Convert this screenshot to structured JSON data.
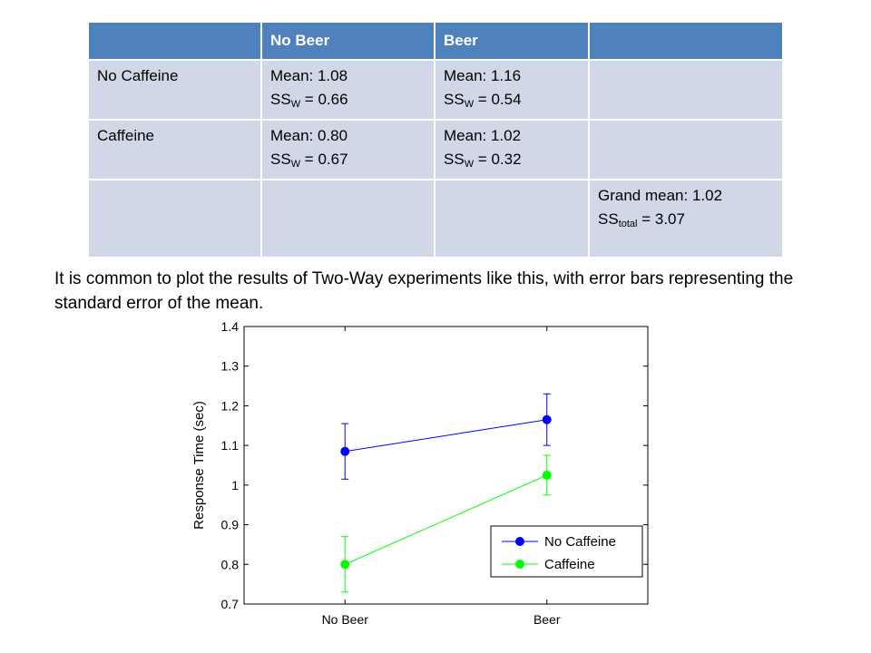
{
  "table": {
    "header": [
      "",
      "No Beer",
      "Beer",
      ""
    ],
    "rows": [
      {
        "label": "No Caffeine",
        "no_beer": {
          "mean": "Mean: 1.08",
          "ss_prefix": "SS",
          "ss_sub": "W",
          "ss_value": " = 0.66"
        },
        "beer": {
          "mean": "Mean: 1.16",
          "ss_prefix": "SS",
          "ss_sub": "W",
          "ss_value": " = 0.54"
        }
      },
      {
        "label": "Caffeine",
        "no_beer": {
          "mean": "Mean: 0.80",
          "ss_prefix": "SS",
          "ss_sub": "W",
          "ss_value": " = 0.67"
        },
        "beer": {
          "mean": "Mean: 1.02",
          "ss_prefix": "SS",
          "ss_sub": "W",
          "ss_value": " = 0.32"
        }
      }
    ],
    "grand": {
      "mean": "Grand mean: 1.02",
      "ss_prefix": "SS",
      "ss_sub": "total",
      "ss_value": " = 3.07"
    },
    "colors": {
      "header": "#4f81bd",
      "cell": "#d0d8e8"
    }
  },
  "description": "It is common to plot the results of Two-Way experiments like this, with error bars representing the standard error of the mean.",
  "chart_data": {
    "type": "line",
    "categories": [
      "No Beer",
      "Beer"
    ],
    "ylabel": "Response Time (sec)",
    "ylim": [
      0.7,
      1.4
    ],
    "yticks": [
      "0.7",
      "0.8",
      "0.9",
      "1",
      "1.1",
      "1.2",
      "1.3",
      "1.4"
    ],
    "legend_position": "bottom-right",
    "series": [
      {
        "name": "No Caffeine",
        "color": "#0000ff",
        "values": [
          1.085,
          1.165
        ],
        "err_low": [
          1.015,
          1.1
        ],
        "err_high": [
          1.155,
          1.23
        ]
      },
      {
        "name": "Caffeine",
        "color": "#00ff00",
        "values": [
          0.8,
          1.025
        ],
        "err_low": [
          0.73,
          0.975
        ],
        "err_high": [
          0.87,
          1.075
        ]
      }
    ]
  }
}
